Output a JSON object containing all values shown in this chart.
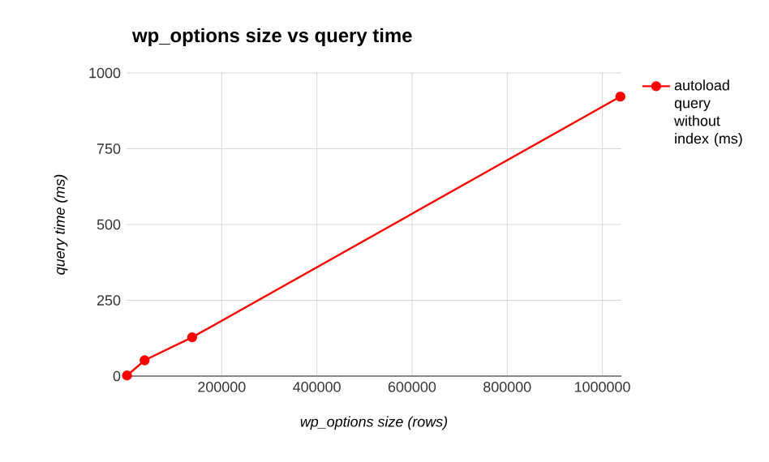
{
  "chart_data": {
    "type": "line",
    "title": "wp_options size vs query time",
    "xlabel": "wp_options size (rows)",
    "ylabel": "query time (ms)",
    "x": [
      1000,
      38000,
      138000,
      1038000
    ],
    "series": [
      {
        "name": "autoload query without index (ms)",
        "color": "#ff0000",
        "values": [
          2,
          52,
          128,
          922
        ]
      }
    ],
    "xlim": [
      0,
      1040000
    ],
    "xticks": [
      200000,
      400000,
      600000,
      800000,
      1000000
    ],
    "ylim": [
      0,
      1000
    ],
    "yticks": [
      0,
      250,
      500,
      750,
      1000
    ],
    "grid": true,
    "legend": "top right",
    "marker": "circle",
    "line_style": "solid"
  }
}
